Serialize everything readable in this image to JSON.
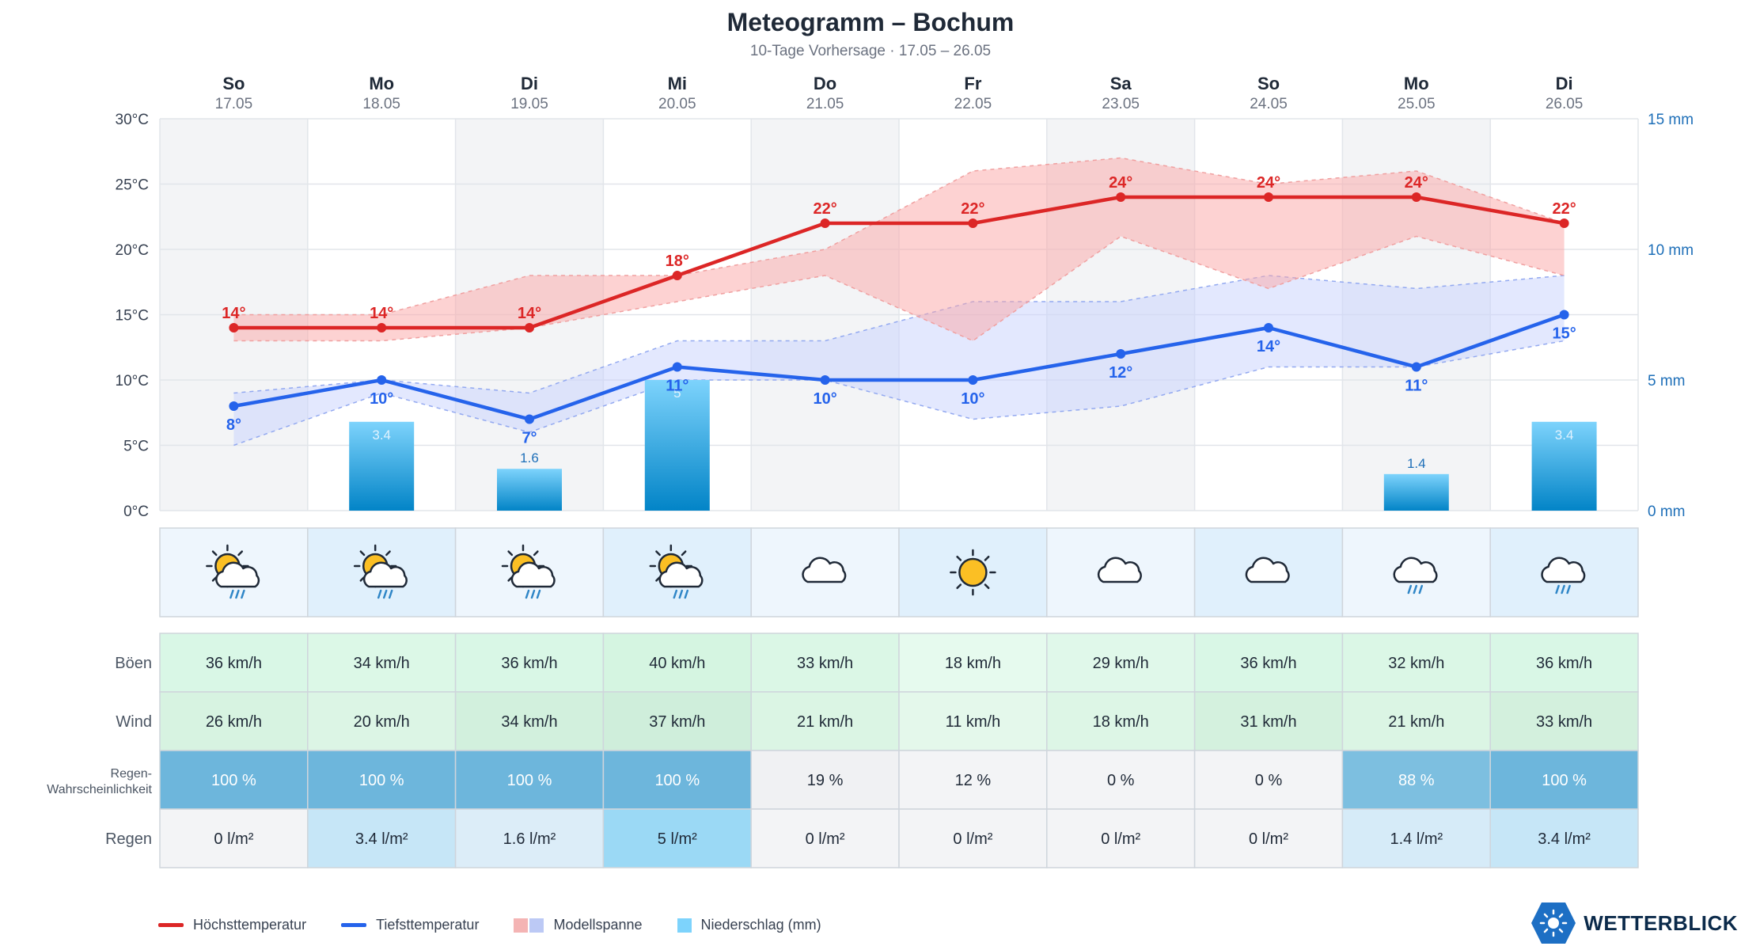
{
  "title": "Meteogramm – Bochum",
  "subtitle": "10-Tage Vorhersage · 17.05 – 26.05",
  "days": [
    {
      "name": "So",
      "date": "17.05",
      "icon": "sun-cloud-rain-icon"
    },
    {
      "name": "Mo",
      "date": "18.05",
      "icon": "sun-cloud-rain-icon"
    },
    {
      "name": "Di",
      "date": "19.05",
      "icon": "sun-cloud-rain-icon"
    },
    {
      "name": "Mi",
      "date": "20.05",
      "icon": "sun-cloud-rain-icon"
    },
    {
      "name": "Do",
      "date": "21.05",
      "icon": "cloud-icon"
    },
    {
      "name": "Fr",
      "date": "22.05",
      "icon": "sun-icon"
    },
    {
      "name": "Sa",
      "date": "23.05",
      "icon": "cloud-icon"
    },
    {
      "name": "So",
      "date": "24.05",
      "icon": "cloud-icon"
    },
    {
      "name": "Mo",
      "date": "25.05",
      "icon": "cloud-rain-icon"
    },
    {
      "name": "Di",
      "date": "26.05",
      "icon": "cloud-rain-icon"
    }
  ],
  "chart_data": {
    "type": "line",
    "x": [
      "17.05",
      "18.05",
      "19.05",
      "20.05",
      "21.05",
      "22.05",
      "23.05",
      "24.05",
      "25.05",
      "26.05"
    ],
    "y_left_ticks": [
      "0°C",
      "5°C",
      "10°C",
      "15°C",
      "20°C",
      "25°C",
      "30°C"
    ],
    "y_left_range": [
      0,
      30
    ],
    "y_right_ticks": [
      "0 mm",
      "5 mm",
      "10 mm",
      "15 mm"
    ],
    "y_right_range": [
      0,
      15
    ],
    "series": [
      {
        "name": "Höchsttemperatur",
        "color": "#dc2626",
        "values": [
          14,
          14,
          14,
          18,
          22,
          22,
          24,
          24,
          24,
          22
        ],
        "labels": [
          "14°",
          "14°",
          "14°",
          "18°",
          "22°",
          "22°",
          "24°",
          "24°",
          "24°",
          "22°"
        ]
      },
      {
        "name": "Tiefsttemperatur",
        "color": "#2563eb",
        "values": [
          8,
          10,
          7,
          11,
          10,
          10,
          12,
          14,
          11,
          15
        ],
        "labels": [
          "8°",
          "10°",
          "7°",
          "11°",
          "10°",
          "10°",
          "12°",
          "14°",
          "11°",
          "15°"
        ]
      }
    ],
    "high_range": {
      "upper": [
        15,
        15,
        18,
        18,
        20,
        26,
        27,
        25,
        26,
        22
      ],
      "lower": [
        13,
        13,
        14,
        16,
        18,
        13,
        21,
        17,
        21,
        18
      ]
    },
    "low_range": {
      "upper": [
        9,
        10,
        9,
        13,
        13,
        16,
        16,
        18,
        17,
        18
      ],
      "lower": [
        5,
        9,
        6,
        10,
        10,
        7,
        8,
        11,
        11,
        13
      ]
    },
    "precipitation": {
      "values": [
        0,
        3.4,
        1.6,
        5,
        0,
        0,
        0,
        0,
        1.4,
        3.4
      ],
      "labels": [
        "",
        "3.4",
        "1.6",
        "5",
        "",
        "",
        "",
        "",
        "1.4",
        "3.4"
      ]
    },
    "grid": true
  },
  "rows": [
    {
      "label": "Böen",
      "values": [
        "36 km/h",
        "34 km/h",
        "36 km/h",
        "40 km/h",
        "33 km/h",
        "18 km/h",
        "29 km/h",
        "36 km/h",
        "32 km/h",
        "36 km/h"
      ],
      "colors": [
        "#d9f7e6",
        "#dcf8e7",
        "#d9f7e6",
        "#d5f5e1",
        "#dbf7e6",
        "#e6faee",
        "#e0f8ea",
        "#d9f7e6",
        "#dbf7e6",
        "#d9f7e6"
      ]
    },
    {
      "label": "Wind",
      "values": [
        "26 km/h",
        "20 km/h",
        "34 km/h",
        "37 km/h",
        "21 km/h",
        "11 km/h",
        "18 km/h",
        "31 km/h",
        "21 km/h",
        "33 km/h"
      ],
      "colors": [
        "#d7f3e1",
        "#dcf5e5",
        "#d2f0dd",
        "#cfeedb",
        "#dbf5e4",
        "#e4f8eb",
        "#ddf6e6",
        "#d4f1de",
        "#dbf5e4",
        "#d3f0dd"
      ]
    },
    {
      "label": "Regen-\nWahrscheinlichkeit",
      "values": [
        "100 %",
        "100 %",
        "100 %",
        "100 %",
        "19 %",
        "12 %",
        "0 %",
        "0 %",
        "88 %",
        "100 %"
      ],
      "colors": [
        "#6db6dc",
        "#6db6dc",
        "#6db6dc",
        "#6db6dc",
        "#f0f1f3",
        "#f3f4f6",
        "#f3f4f6",
        "#f3f4f6",
        "#7dbfe0",
        "#6db6dc"
      ]
    },
    {
      "label": "Regen",
      "values": [
        "0 l/m²",
        "3.4 l/m²",
        "1.6 l/m²",
        "5 l/m²",
        "0 l/m²",
        "0 l/m²",
        "0 l/m²",
        "0 l/m²",
        "1.4 l/m²",
        "3.4 l/m²"
      ],
      "colors": [
        "#f3f4f6",
        "#c6e6f7",
        "#dcedf8",
        "#9bd9f5",
        "#f3f4f6",
        "#f3f4f6",
        "#f3f4f6",
        "#f3f4f6",
        "#d6ebf8",
        "#c6e6f7"
      ]
    }
  ],
  "legend": {
    "high": "Höchsttemperatur",
    "low": "Tiefsttemperatur",
    "range": "Modellspanne",
    "precip": "Niederschlag (mm)"
  },
  "brand": "WETTERBLICK",
  "colors": {
    "high": "#dc2626",
    "low": "#2563eb",
    "precip": "#3ba7e0",
    "grid": "#e5e7eb"
  }
}
